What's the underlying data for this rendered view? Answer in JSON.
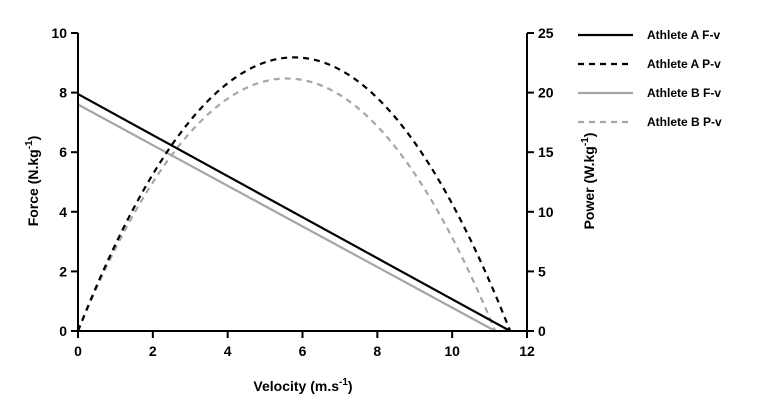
{
  "chart_data": {
    "type": "line",
    "xlabel": "Velocity (m.s",
    "xlabel_sup": "-1",
    "xlabel_end": ")",
    "ylabel_left": "Force (N.kg",
    "ylabel_left_sup": "-1",
    "ylabel_left_end": ")",
    "ylabel_right": "Power (W.kg",
    "ylabel_right_sup": "-1",
    "ylabel_right_end": ")",
    "xlim": [
      0,
      12
    ],
    "ylim_left": [
      0,
      10
    ],
    "ylim_right": [
      0,
      25
    ],
    "x_ticks": [
      "0",
      "2",
      "4",
      "6",
      "8",
      "10",
      "12"
    ],
    "y_left_ticks": [
      "0",
      "2",
      "4",
      "6",
      "8",
      "10"
    ],
    "y_right_ticks": [
      "0",
      "5",
      "10",
      "15",
      "20",
      "25"
    ],
    "grid": false,
    "legend_position": "top-right",
    "series": [
      {
        "name": "Athlete A  F-v",
        "kind": "force",
        "axis": "left",
        "style": "solid",
        "color": "#000000",
        "F0": 7.95,
        "V0": 11.55
      },
      {
        "name": "Athlete A P-v",
        "kind": "power",
        "axis": "right",
        "style": "dashed",
        "color": "#000000",
        "F0": 7.95,
        "V0": 11.55
      },
      {
        "name": "Athlete B F-v",
        "kind": "force",
        "axis": "left",
        "style": "solid",
        "color": "#a6a6a6",
        "F0": 7.6,
        "V0": 11.15
      },
      {
        "name": "Athlete B P-v",
        "kind": "power",
        "axis": "right",
        "style": "dashed",
        "color": "#a6a6a6",
        "F0": 7.6,
        "V0": 11.15
      }
    ]
  }
}
